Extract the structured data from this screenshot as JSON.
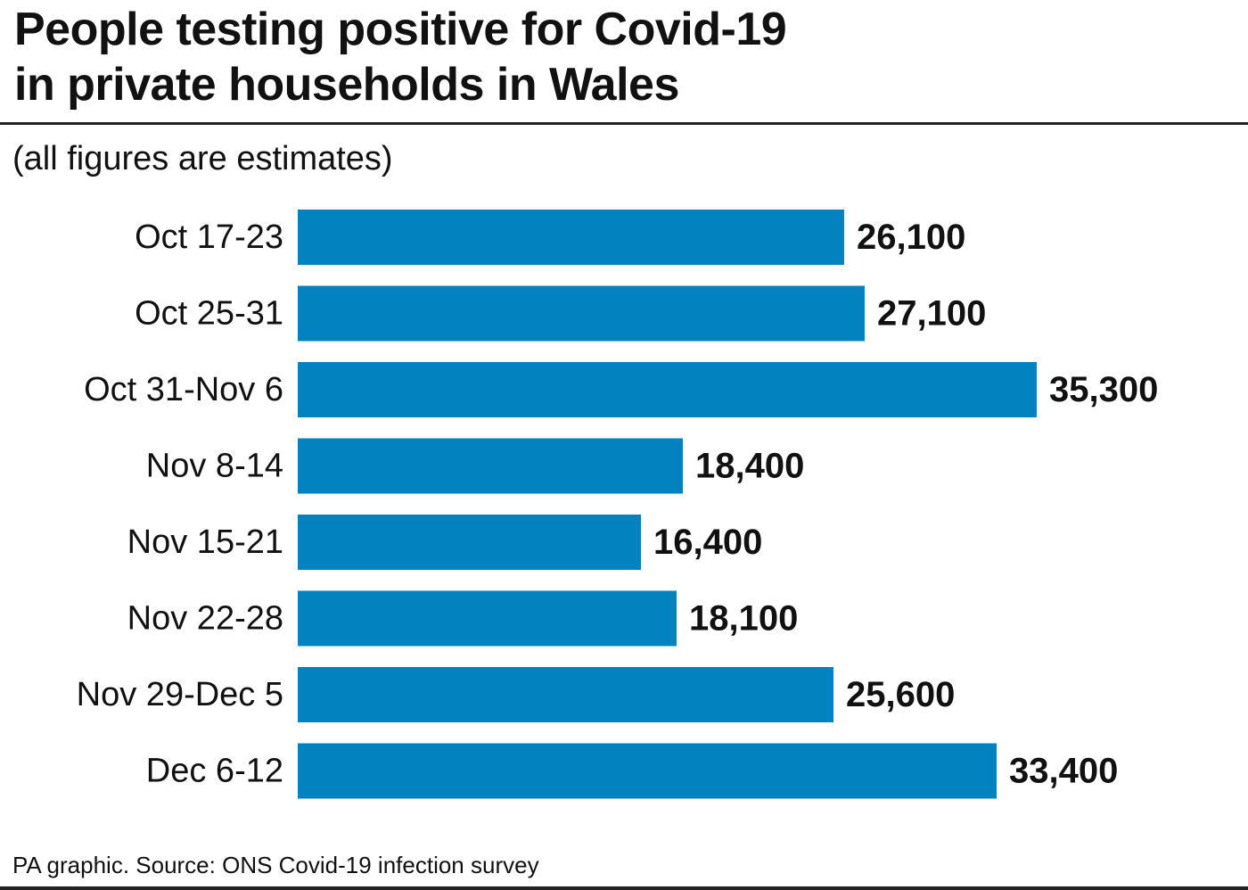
{
  "header": {
    "title_line1": "People testing positive for Covid-19",
    "title_line2": "in private households in Wales",
    "subtitle": "(all figures are estimates)"
  },
  "footer": {
    "source": "PA graphic. Source: ONS Covid-19 infection survey"
  },
  "colors": {
    "bar": "#0282be",
    "text": "#111111"
  },
  "chart_data": {
    "type": "bar",
    "orientation": "horizontal",
    "categories": [
      "Oct 17-23",
      "Oct 25-31",
      "Oct 31-Nov 6",
      "Nov 8-14",
      "Nov 15-21",
      "Nov 22-28",
      "Nov 29-Dec 5",
      "Dec 6-12"
    ],
    "values": [
      26100,
      27100,
      35300,
      18400,
      16400,
      18100,
      25600,
      33400
    ],
    "value_labels": [
      "26,100",
      "27,100",
      "35,300",
      "18,400",
      "16,400",
      "18,100",
      "25,600",
      "33,400"
    ],
    "xlim": [
      0,
      35300
    ],
    "grid": false,
    "legend": "none"
  }
}
